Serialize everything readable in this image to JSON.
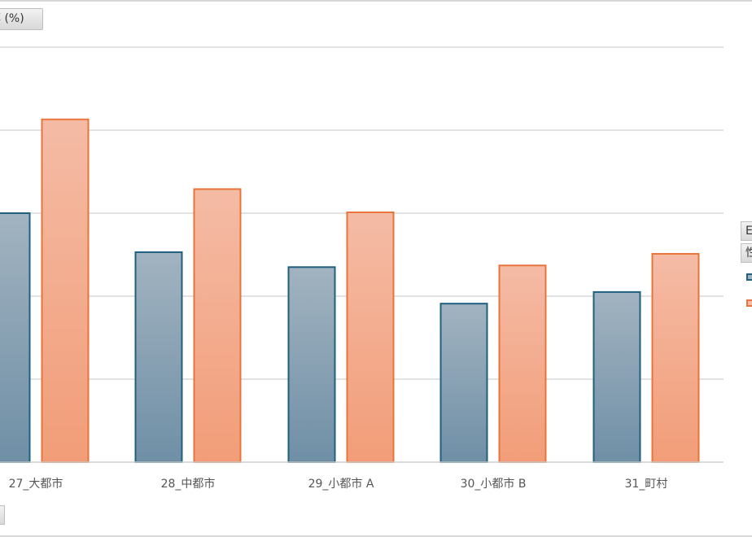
{
  "chart_data": {
    "type": "bar",
    "y_title": "率 (%)",
    "categories": [
      "27_大都市",
      "28_中都市",
      "29_小都市 A",
      "30_小都市 B",
      "31_町村"
    ],
    "series": [
      {
        "values": [
          30,
          25.3,
          23.5,
          19.1,
          20.5
        ],
        "color": "#1f5f7f"
      },
      {
        "values": [
          41.3,
          32.9,
          30.1,
          23.7,
          25.1
        ],
        "color": "#e8743b"
      }
    ],
    "ylim": [
      0,
      50
    ],
    "grid": true,
    "legend": {
      "title_lines": [
        "E",
        "性"
      ],
      "position": "right"
    },
    "colors": {
      "series1_fill_top": "#a2b3c0",
      "series1_fill_bottom": "#6f8fa6",
      "series1_stroke": "#1f5f7f",
      "series2_fill_top": "#f4bba5",
      "series2_fill_bottom": "#f29d78",
      "series2_stroke": "#e8743b",
      "grid": "#d9d9d9"
    }
  }
}
